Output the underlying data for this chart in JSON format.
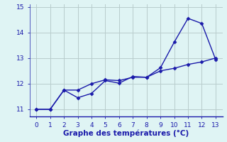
{
  "line1_x": [
    0,
    1,
    2,
    3,
    4,
    5,
    6,
    7,
    8,
    9,
    10,
    11,
    12,
    13
  ],
  "line1_y": [
    11.0,
    11.0,
    11.75,
    11.45,
    11.62,
    12.12,
    12.02,
    12.28,
    12.25,
    12.62,
    13.62,
    14.55,
    14.35,
    12.95
  ],
  "line2_x": [
    0,
    1,
    2,
    3,
    4,
    5,
    6,
    7,
    8,
    9,
    10,
    11,
    12,
    13
  ],
  "line2_y": [
    11.0,
    11.0,
    11.75,
    11.75,
    12.0,
    12.15,
    12.12,
    12.25,
    12.25,
    12.5,
    12.6,
    12.75,
    12.85,
    13.0
  ],
  "line_color": "#1a1aaa",
  "marker": "D",
  "markersize": 2.5,
  "xlabel": "Graphe des températures (°C)",
  "xlim": [
    -0.5,
    13.5
  ],
  "ylim": [
    10.72,
    15.1
  ],
  "xticks": [
    0,
    1,
    2,
    3,
    4,
    5,
    6,
    7,
    8,
    9,
    10,
    11,
    12,
    13
  ],
  "yticks": [
    11,
    12,
    13,
    14,
    15
  ],
  "bg_color": "#dff4f4",
  "grid_color": "#b8cccc",
  "xlabel_fontsize": 7.5,
  "tick_fontsize": 6.5,
  "tick_color": "#1a1aaa",
  "linewidth": 1.0
}
